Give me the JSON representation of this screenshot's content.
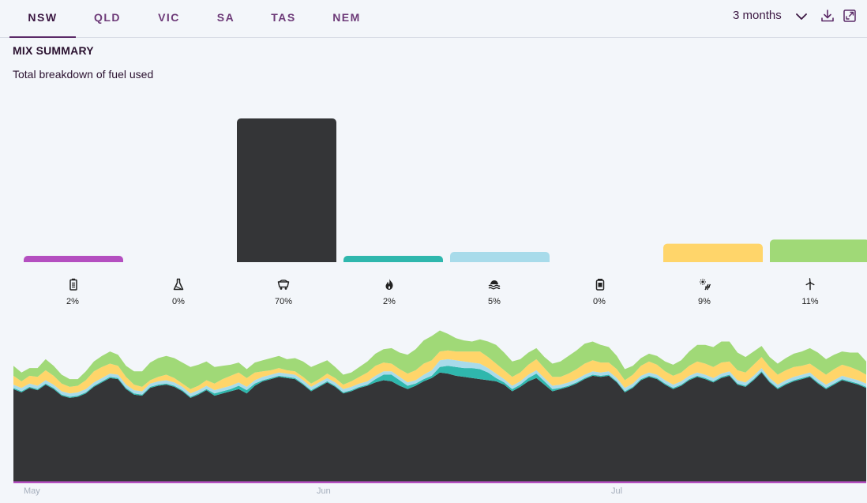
{
  "tabs": [
    {
      "label": "NSW",
      "active": true
    },
    {
      "label": "QLD",
      "active": false
    },
    {
      "label": "VIC",
      "active": false
    },
    {
      "label": "SA",
      "active": false
    },
    {
      "label": "TAS",
      "active": false
    },
    {
      "label": "NEM",
      "active": false
    }
  ],
  "period": {
    "label": "3 months"
  },
  "summary": {
    "title": "MIX SUMMARY",
    "subtitle": "Total breakdown of fuel used"
  },
  "colors": {
    "battery": "#b44fc0",
    "liquid": "#a3213f",
    "coal": "#343537",
    "gas": "#2fb7ad",
    "hydro": "#a8dbea",
    "other": "#e6e6e6",
    "solar": "#ffd56a",
    "wind": "#a0d977"
  },
  "chart_data": [
    {
      "type": "bar",
      "categories": [
        "battery",
        "liquid",
        "coal",
        "gas",
        "hydro",
        "other",
        "solar",
        "wind"
      ],
      "icons": [
        "battery-icon",
        "flask-icon",
        "coal-cart-icon",
        "flame-icon",
        "hydro-wave-icon",
        "storage-can-icon",
        "solar-panel-icon",
        "wind-turbine-icon"
      ],
      "values": [
        2,
        0,
        70,
        2,
        5,
        0,
        9,
        11
      ],
      "labels": [
        "2%",
        "0%",
        "70%",
        "2%",
        "5%",
        "0%",
        "9%",
        "11%"
      ]
    },
    {
      "type": "area",
      "x_labels": [
        "May",
        "Jun",
        "Jul"
      ],
      "series_order": [
        "battery",
        "coal",
        "gas",
        "hydro",
        "solar",
        "wind"
      ],
      "coal": [
        84,
        81,
        85,
        83,
        88,
        84,
        78,
        76,
        77,
        80,
        86,
        90,
        94,
        93,
        84,
        79,
        78,
        85,
        87,
        88,
        86,
        82,
        76,
        79,
        83,
        78,
        80,
        82,
        84,
        80,
        87,
        91,
        93,
        95,
        94,
        93,
        88,
        82,
        86,
        90,
        86,
        80,
        82,
        85,
        87,
        90,
        92,
        91,
        87,
        84,
        87,
        91,
        94,
        99,
        98,
        96,
        95,
        94,
        93,
        92,
        91,
        88,
        82,
        86,
        91,
        94,
        88,
        82,
        84,
        86,
        89,
        93,
        96,
        95,
        96,
        90,
        81,
        85,
        92,
        95,
        93,
        88,
        84,
        87,
        92,
        95,
        93,
        90,
        94,
        96,
        88,
        86,
        92,
        99,
        90,
        84,
        88,
        91,
        93,
        95,
        89,
        84,
        88,
        92,
        90,
        88,
        85
      ],
      "gas": [
        1,
        1,
        1,
        1,
        1,
        1,
        1,
        1,
        1,
        1,
        1,
        1,
        1,
        1,
        1,
        1,
        1,
        1,
        1,
        1,
        1,
        1,
        1,
        1,
        1,
        2,
        2,
        2,
        3,
        3,
        2,
        1,
        1,
        1,
        1,
        1,
        1,
        1,
        1,
        1,
        1,
        1,
        1,
        1,
        1,
        3,
        5,
        6,
        5,
        3,
        2,
        2,
        2,
        5,
        7,
        8,
        8,
        9,
        9,
        7,
        3,
        2,
        2,
        2,
        3,
        4,
        3,
        2,
        1,
        1,
        1,
        1,
        1,
        1,
        1,
        1,
        1,
        1,
        1,
        1,
        1,
        1,
        1,
        1,
        1,
        1,
        1,
        1,
        1,
        1,
        1,
        1,
        1,
        1,
        1,
        1,
        1,
        1,
        1,
        1,
        1,
        1,
        1,
        1,
        1,
        1,
        1
      ],
      "hydro": [
        3,
        3,
        3,
        3,
        3,
        3,
        3,
        3,
        3,
        3,
        3,
        3,
        3,
        3,
        3,
        3,
        3,
        3,
        3,
        3,
        3,
        3,
        3,
        3,
        3,
        3,
        3,
        3,
        3,
        3,
        3,
        3,
        3,
        3,
        3,
        3,
        3,
        3,
        3,
        3,
        3,
        3,
        3,
        3,
        3,
        3,
        3,
        3,
        3,
        3,
        3,
        4,
        5,
        6,
        6,
        6,
        6,
        5,
        5,
        4,
        4,
        3,
        3,
        3,
        3,
        3,
        3,
        3,
        3,
        3,
        3,
        3,
        3,
        3,
        3,
        3,
        3,
        3,
        3,
        3,
        3,
        3,
        3,
        3,
        3,
        3,
        3,
        3,
        3,
        3,
        3,
        3,
        3,
        3,
        3,
        3,
        3,
        3,
        3,
        3,
        3,
        3,
        3,
        3,
        3,
        3,
        3
      ],
      "solar": [
        8,
        6,
        7,
        8,
        9,
        8,
        7,
        6,
        6,
        8,
        10,
        10,
        9,
        8,
        7,
        5,
        4,
        3,
        4,
        5,
        4,
        3,
        4,
        4,
        5,
        6,
        8,
        9,
        9,
        8,
        7,
        5,
        4,
        4,
        3,
        3,
        3,
        3,
        3,
        4,
        4,
        4,
        5,
        6,
        8,
        9,
        8,
        7,
        7,
        8,
        9,
        10,
        9,
        8,
        8,
        8,
        9,
        10,
        11,
        10,
        9,
        8,
        8,
        8,
        9,
        10,
        9,
        8,
        7,
        8,
        9,
        10,
        10,
        9,
        8,
        8,
        7,
        8,
        9,
        10,
        9,
        8,
        8,
        8,
        9,
        10,
        10,
        10,
        10,
        9,
        9,
        9,
        10,
        10,
        10,
        9,
        9,
        9,
        8,
        8,
        9,
        9,
        10,
        10,
        10,
        9,
        8
      ],
      "wind": [
        9,
        8,
        7,
        8,
        10,
        9,
        8,
        7,
        6,
        8,
        9,
        10,
        11,
        10,
        10,
        12,
        14,
        16,
        17,
        17,
        18,
        19,
        20,
        19,
        17,
        15,
        12,
        10,
        9,
        8,
        9,
        10,
        11,
        11,
        10,
        12,
        14,
        15,
        14,
        12,
        10,
        9,
        8,
        9,
        10,
        11,
        12,
        14,
        15,
        17,
        19,
        21,
        22,
        19,
        15,
        12,
        10,
        9,
        11,
        14,
        17,
        16,
        14,
        12,
        11,
        10,
        10,
        12,
        14,
        16,
        17,
        18,
        17,
        16,
        14,
        12,
        10,
        8,
        7,
        7,
        8,
        9,
        10,
        11,
        13,
        15,
        17,
        18,
        19,
        18,
        16,
        14,
        12,
        10,
        9,
        10,
        11,
        12,
        13,
        14,
        15,
        14,
        13,
        12,
        13,
        16,
        12
      ]
    }
  ]
}
